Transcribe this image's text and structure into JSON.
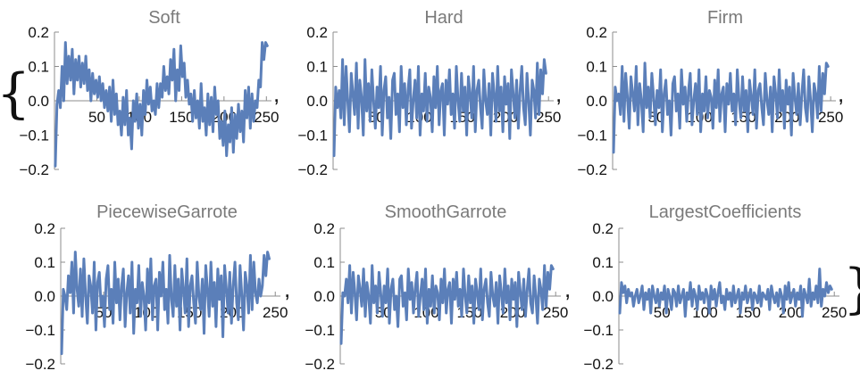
{
  "delimiters": {
    "open": "{",
    "close": "}",
    "separator": ","
  },
  "chart_data": [
    {
      "type": "line",
      "title": "Soft",
      "xlim": [
        0,
        256
      ],
      "ylim": [
        -0.2,
        0.2
      ],
      "xticks": [
        50,
        100,
        150,
        200,
        250
      ],
      "yticks": [
        -0.2,
        -0.1,
        0.0,
        0.1,
        0.2
      ],
      "ytick_labels": [
        "−0.2",
        "−0.1",
        "0.0",
        "0.1",
        "0.2"
      ],
      "color": "#5b7fb9",
      "x_start": 1,
      "x_step": 2,
      "values": [
        -0.19,
        -0.01,
        0.03,
        -0.02,
        0.1,
        0.0,
        0.17,
        0.05,
        0.13,
        0.06,
        0.15,
        0.02,
        0.12,
        0.06,
        0.13,
        0.04,
        0.11,
        0.05,
        0.13,
        0.03,
        0.09,
        0.0,
        0.08,
        0.02,
        0.06,
        0.01,
        0.07,
        0.0,
        0.05,
        -0.02,
        0.03,
        -0.03,
        0.04,
        -0.06,
        0.06,
        -0.04,
        0.02,
        -0.07,
        -0.03,
        -0.1,
        0.01,
        -0.07,
        0.03,
        -0.1,
        -0.05,
        -0.14,
        0.0,
        -0.06,
        0.02,
        -0.08,
        -0.01,
        -0.1,
        0.03,
        -0.04,
        0.06,
        -0.01,
        0.04,
        -0.03,
        0.0,
        -0.04,
        0.05,
        -0.02,
        0.05,
        0.01,
        0.1,
        0.03,
        0.07,
        0.02,
        0.12,
        0.06,
        0.15,
        0.0,
        0.09,
        0.03,
        0.16,
        0.07,
        0.11,
        0.01,
        0.06,
        -0.01,
        0.02,
        -0.06,
        0.03,
        -0.05,
        0.0,
        -0.08,
        0.05,
        -0.06,
        -0.02,
        -0.1,
        0.02,
        -0.07,
        0.01,
        -0.09,
        0.04,
        -0.04,
        0.0,
        -0.11,
        -0.06,
        -0.13,
        -0.03,
        -0.16,
        -0.07,
        -0.12,
        -0.02,
        -0.15,
        -0.04,
        -0.11,
        -0.01,
        -0.09,
        -0.03,
        -0.12,
        0.03,
        -0.05,
        0.04,
        -0.08,
        0.02,
        -0.06,
        0.0,
        -0.02,
        0.06,
        0.04,
        0.17,
        0.12,
        0.17,
        0.16
      ]
    },
    {
      "type": "line",
      "title": "Hard",
      "xlim": [
        0,
        256
      ],
      "ylim": [
        -0.2,
        0.2
      ],
      "xticks": [
        50,
        100,
        150,
        200,
        250
      ],
      "yticks": [
        -0.2,
        -0.1,
        0.0,
        0.1,
        0.2
      ],
      "ytick_labels": [
        "−0.2",
        "−0.1",
        "0.0",
        "0.1",
        "0.2"
      ],
      "color": "#5b7fb9",
      "x_start": 1,
      "x_step": 2,
      "values": [
        -0.16,
        0.04,
        -0.02,
        0.03,
        -0.05,
        0.12,
        -0.07,
        0.1,
        0.0,
        -0.09,
        0.08,
        0.02,
        -0.04,
        0.11,
        -0.08,
        0.06,
        0.01,
        -0.1,
        0.12,
        -0.03,
        0.05,
        -0.06,
        0.09,
        0.0,
        -0.08,
        0.04,
        -0.02,
        0.1,
        -0.1,
        0.03,
        0.07,
        -0.05,
        0.01,
        -0.11,
        0.06,
        0.08,
        -0.04,
        0.02,
        -0.09,
        0.1,
        -0.02,
        0.05,
        -0.07,
        0.03,
        0.09,
        -0.08,
        0.0,
        0.06,
        -0.05,
        0.1,
        -0.1,
        0.02,
        -0.03,
        0.08,
        -0.06,
        0.04,
        0.01,
        -0.09,
        0.07,
        -0.02,
        0.1,
        -0.07,
        0.03,
        0.05,
        -0.1,
        0.06,
        -0.01,
        0.09,
        -0.04,
        0.02,
        -0.08,
        0.1,
        0.0,
        -0.06,
        0.08,
        -0.03,
        0.04,
        -0.1,
        0.07,
        0.02,
        -0.05,
        0.1,
        -0.09,
        0.03,
        0.06,
        -0.02,
        -0.08,
        0.09,
        0.0,
        -0.04,
        0.05,
        -0.1,
        0.08,
        0.02,
        -0.06,
        0.1,
        -0.03,
        0.04,
        -0.09,
        0.07,
        -0.01,
        0.05,
        -0.11,
        0.09,
        0.02,
        -0.05,
        0.06,
        -0.08,
        0.03,
        0.1,
        -0.02,
        -0.07,
        0.08,
        0.0,
        -0.1,
        0.06,
        0.03,
        -0.05,
        0.11,
        -0.04,
        0.09,
        0.02,
        0.12,
        0.08
      ]
    },
    {
      "type": "line",
      "title": "Firm",
      "xlim": [
        0,
        256
      ],
      "ylim": [
        -0.2,
        0.2
      ],
      "xticks": [
        50,
        100,
        150,
        200,
        250
      ],
      "yticks": [
        -0.2,
        -0.1,
        0.0,
        0.1,
        0.2
      ],
      "ytick_labels": [
        "−0.2",
        "−0.1",
        "0.0",
        "0.1",
        "0.2"
      ],
      "color": "#5b7fb9",
      "x_start": 1,
      "x_step": 2,
      "values": [
        -0.15,
        0.04,
        0.0,
        0.02,
        -0.04,
        0.1,
        -0.06,
        0.08,
        0.01,
        -0.08,
        0.07,
        0.02,
        -0.03,
        0.1,
        -0.07,
        0.05,
        0.0,
        -0.09,
        0.11,
        -0.02,
        0.04,
        -0.05,
        0.08,
        0.01,
        -0.07,
        0.03,
        -0.02,
        0.09,
        -0.09,
        0.02,
        0.06,
        -0.04,
        0.0,
        -0.1,
        0.05,
        0.07,
        -0.03,
        0.02,
        -0.08,
        0.09,
        -0.01,
        0.04,
        -0.06,
        0.03,
        0.08,
        -0.07,
        0.0,
        0.05,
        -0.04,
        0.09,
        -0.09,
        0.02,
        -0.03,
        0.07,
        -0.05,
        0.03,
        0.01,
        -0.08,
        0.06,
        -0.02,
        0.09,
        -0.06,
        0.02,
        0.04,
        -0.09,
        0.05,
        -0.01,
        0.08,
        -0.03,
        0.02,
        -0.07,
        0.09,
        0.0,
        -0.05,
        0.07,
        -0.03,
        0.03,
        -0.09,
        0.06,
        0.01,
        -0.04,
        0.09,
        -0.08,
        0.03,
        0.05,
        -0.02,
        -0.07,
        0.08,
        0.0,
        -0.04,
        0.04,
        -0.09,
        0.07,
        0.02,
        -0.05,
        0.09,
        -0.03,
        0.03,
        -0.08,
        0.06,
        -0.01,
        0.04,
        -0.1,
        0.08,
        0.01,
        -0.04,
        0.05,
        -0.07,
        0.02,
        0.09,
        -0.02,
        -0.06,
        0.07,
        0.0,
        -0.09,
        0.05,
        0.02,
        -0.05,
        0.1,
        -0.03,
        0.08,
        0.02,
        0.11,
        0.1
      ]
    },
    {
      "type": "line",
      "title": "PiecewiseGarrote",
      "xlim": [
        0,
        256
      ],
      "ylim": [
        -0.2,
        0.2
      ],
      "xticks": [
        50,
        100,
        150,
        200,
        250
      ],
      "yticks": [
        -0.2,
        -0.1,
        0.0,
        0.1,
        0.2
      ],
      "ytick_labels": [
        "−0.2",
        "−0.1",
        "0.0",
        "0.1",
        "0.2"
      ],
      "color": "#5b7fb9",
      "x_start": 1,
      "x_step": 2,
      "values": [
        -0.17,
        0.02,
        0.0,
        -0.04,
        0.06,
        0.01,
        0.1,
        -0.05,
        0.13,
        0.02,
        -0.03,
        0.08,
        -0.06,
        0.11,
        0.0,
        -0.08,
        0.06,
        0.03,
        -0.05,
        0.1,
        -0.1,
        0.04,
        0.07,
        -0.03,
        0.0,
        -0.09,
        0.05,
        0.09,
        -0.04,
        0.02,
        -0.08,
        0.1,
        -0.02,
        0.05,
        -0.07,
        0.03,
        0.08,
        -0.09,
        0.01,
        0.06,
        -0.05,
        0.1,
        -0.11,
        0.02,
        -0.02,
        0.09,
        -0.06,
        0.04,
        0.0,
        -0.1,
        0.08,
        -0.02,
        0.11,
        -0.07,
        0.03,
        0.05,
        -0.1,
        0.07,
        0.0,
        0.1,
        -0.04,
        0.02,
        -0.08,
        0.12,
        -0.01,
        -0.06,
        0.09,
        -0.03,
        0.05,
        -0.1,
        0.08,
        0.02,
        -0.05,
        0.11,
        -0.09,
        0.03,
        0.06,
        -0.02,
        -0.08,
        0.1,
        0.0,
        -0.04,
        0.05,
        -0.11,
        0.09,
        0.02,
        -0.06,
        0.1,
        -0.03,
        0.04,
        -0.09,
        0.08,
        -0.01,
        0.06,
        -0.12,
        0.09,
        0.02,
        -0.05,
        0.07,
        -0.08,
        0.03,
        0.1,
        -0.02,
        -0.07,
        0.09,
        0.0,
        -0.1,
        0.07,
        0.03,
        -0.05,
        0.12,
        -0.04,
        0.1,
        0.01,
        -0.02,
        0.05,
        0.0,
        0.03,
        0.12,
        0.06,
        0.13,
        0.11
      ]
    },
    {
      "type": "line",
      "title": "SmoothGarrote",
      "xlim": [
        0,
        256
      ],
      "ylim": [
        -0.2,
        0.2
      ],
      "xticks": [
        50,
        100,
        150,
        200,
        250
      ],
      "yticks": [
        -0.2,
        -0.1,
        0.0,
        0.1,
        0.2
      ],
      "ytick_labels": [
        "−0.2",
        "−0.1",
        "0.0",
        "0.1",
        "0.2"
      ],
      "color": "#5b7fb9",
      "x_start": 1,
      "x_step": 2,
      "values": [
        -0.14,
        0.01,
        0.0,
        0.05,
        -0.02,
        0.09,
        -0.05,
        0.07,
        0.01,
        -0.07,
        0.06,
        0.02,
        -0.03,
        0.08,
        -0.06,
        0.04,
        0.0,
        -0.08,
        0.09,
        -0.02,
        0.03,
        -0.05,
        0.07,
        0.01,
        -0.06,
        0.03,
        -0.02,
        0.08,
        -0.08,
        0.02,
        0.05,
        -0.04,
        0.0,
        -0.09,
        0.05,
        0.06,
        -0.03,
        0.01,
        -0.07,
        0.08,
        -0.01,
        0.04,
        -0.05,
        0.02,
        0.07,
        -0.06,
        0.0,
        0.05,
        -0.04,
        0.08,
        -0.08,
        0.02,
        -0.03,
        0.06,
        -0.05,
        0.03,
        0.01,
        -0.07,
        0.05,
        -0.02,
        0.08,
        -0.05,
        0.02,
        0.04,
        -0.08,
        0.05,
        -0.01,
        0.07,
        -0.03,
        0.02,
        -0.06,
        0.08,
        0.0,
        -0.05,
        0.06,
        -0.02,
        0.03,
        -0.08,
        0.05,
        0.01,
        -0.04,
        0.08,
        -0.07,
        0.02,
        0.05,
        -0.02,
        -0.06,
        0.07,
        0.0,
        -0.03,
        0.04,
        -0.08,
        0.06,
        0.01,
        -0.05,
        0.08,
        -0.02,
        0.03,
        -0.07,
        0.05,
        -0.01,
        0.04,
        -0.09,
        0.07,
        0.01,
        -0.04,
        0.05,
        -0.06,
        0.02,
        0.08,
        -0.02,
        -0.05,
        0.06,
        0.0,
        -0.08,
        0.05,
        0.02,
        -0.04,
        0.09,
        -0.03,
        0.07,
        0.02,
        0.09,
        0.08
      ]
    },
    {
      "type": "line",
      "title": "LargestCoefficients",
      "xlim": [
        0,
        256
      ],
      "ylim": [
        -0.2,
        0.2
      ],
      "xticks": [
        50,
        100,
        150,
        200,
        250
      ],
      "yticks": [
        -0.2,
        -0.1,
        0.0,
        0.1,
        0.2
      ],
      "ytick_labels": [
        "−0.2",
        "−0.1",
        "0.0",
        "0.1",
        "0.2"
      ],
      "color": "#5b7fb9",
      "x_start": 1,
      "x_step": 2,
      "values": [
        -0.05,
        0.04,
        0.01,
        0.03,
        -0.02,
        0.02,
        0.0,
        0.01,
        -0.03,
        0.0,
        0.02,
        -0.02,
        0.0,
        0.03,
        -0.04,
        0.01,
        -0.01,
        0.02,
        -0.05,
        0.03,
        0.0,
        -0.02,
        0.02,
        -0.03,
        0.01,
        -0.01,
        0.03,
        -0.05,
        0.02,
        0.0,
        -0.04,
        0.02,
        0.01,
        -0.03,
        0.03,
        -0.02,
        0.0,
        0.02,
        -0.06,
        0.01,
        -0.01,
        0.04,
        -0.03,
        0.02,
        0.0,
        -0.04,
        0.03,
        -0.01,
        0.01,
        -0.02,
        0.02,
        0.0,
        -0.05,
        0.03,
        -0.01,
        0.02,
        -0.03,
        0.01,
        0.04,
        -0.02,
        0.0,
        -0.04,
        0.02,
        -0.01,
        0.01,
        -0.03,
        0.03,
        -0.02,
        0.0,
        0.02,
        -0.05,
        0.01,
        -0.01,
        0.03,
        -0.02,
        0.0,
        0.02,
        -0.04,
        0.01,
        0.0,
        -0.02,
        0.03,
        -0.03,
        0.01,
        0.0,
        -0.01,
        0.02,
        -0.04,
        0.03,
        0.0,
        -0.02,
        0.01,
        -0.03,
        0.02,
        0.0,
        -0.05,
        0.03,
        -0.01,
        0.04,
        -0.02,
        0.0,
        0.02,
        -0.03,
        0.01,
        -0.01,
        0.03,
        -0.06,
        0.02,
        0.0,
        -0.02,
        0.05,
        -0.03,
        0.01,
        -0.01,
        0.03,
        -0.02,
        0.08,
        -0.03,
        0.02,
        0.0,
        0.04,
        0.01,
        0.03,
        0.02
      ]
    }
  ]
}
